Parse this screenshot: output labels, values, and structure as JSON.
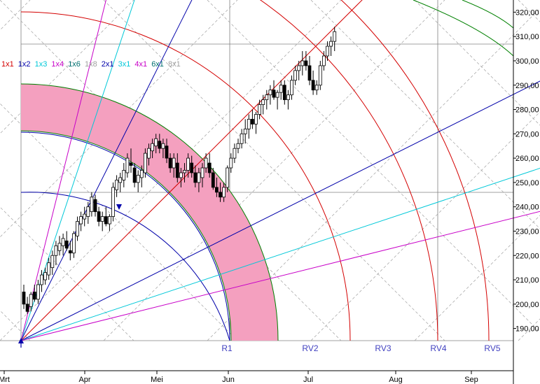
{
  "chart_data": {
    "type": "candlestick",
    "y_axis": {
      "ylim": [
        185,
        325
      ],
      "ticks": [
        320,
        310,
        300,
        290,
        280,
        270,
        260,
        250,
        240,
        230,
        220,
        210,
        200,
        190
      ],
      "tick_labels": [
        "320,00",
        "310,00",
        "300,00",
        "290,00",
        "280,00",
        "270,00",
        "260,00",
        "250,00",
        "240,00",
        "230,00",
        "220,00",
        "210,00",
        "200,00",
        "190,00"
      ]
    },
    "x_axis": {
      "month_labels": [
        "Mrt",
        "Apr",
        "Mei",
        "Jun",
        "Jul",
        "Aug",
        "Sep"
      ],
      "month_index": [
        0,
        27,
        48,
        70,
        91,
        114,
        136
      ]
    },
    "fan_legend": [
      {
        "label": "1x1",
        "color": "#d40000"
      },
      {
        "label": "1x2",
        "color": "#0000aa"
      },
      {
        "label": "1x3",
        "color": "#00c8d8"
      },
      {
        "label": "1x4",
        "color": "#c800c8"
      },
      {
        "label": "1x6",
        "color": "#007070"
      },
      {
        "label": "1x8",
        "color": "#a0a0a0"
      },
      {
        "label": "2x1",
        "color": "#0000aa"
      },
      {
        "label": "3x1",
        "color": "#00c8d8"
      },
      {
        "label": "4x1",
        "color": "#c800c8"
      },
      {
        "label": "6x1",
        "color": "#007070"
      },
      {
        "label": "8x1",
        "color": "#a0a0a0"
      }
    ],
    "radial_labels": [
      "R1",
      "RV2",
      "RV3",
      "RV4",
      "RV5"
    ],
    "ohlc": [
      [
        205,
        208,
        198,
        200
      ],
      [
        200,
        203,
        196,
        197
      ],
      [
        199,
        205,
        197,
        204
      ],
      [
        205,
        208,
        201,
        202
      ],
      [
        202,
        210,
        200,
        208
      ],
      [
        208,
        214,
        205,
        212
      ],
      [
        210,
        215,
        208,
        213
      ],
      [
        212,
        219,
        210,
        217
      ],
      [
        215,
        222,
        212,
        220
      ],
      [
        220,
        226,
        216,
        224
      ],
      [
        222,
        228,
        220,
        225
      ],
      [
        224,
        229,
        220,
        227
      ],
      [
        226,
        230,
        222,
        223
      ],
      [
        222,
        226,
        218,
        221
      ],
      [
        221,
        230,
        219,
        229
      ],
      [
        228,
        236,
        226,
        234
      ],
      [
        233,
        238,
        230,
        236
      ],
      [
        235,
        240,
        232,
        237
      ],
      [
        236,
        242,
        233,
        240
      ],
      [
        238,
        246,
        236,
        244
      ],
      [
        243,
        245,
        236,
        238
      ],
      [
        238,
        240,
        232,
        234
      ],
      [
        234,
        238,
        230,
        236
      ],
      [
        236,
        240,
        232,
        233
      ],
      [
        233,
        237,
        230,
        236
      ],
      [
        236,
        250,
        234,
        248
      ],
      [
        247,
        253,
        244,
        251
      ],
      [
        250,
        254,
        246,
        252
      ],
      [
        251,
        258,
        248,
        255
      ],
      [
        254,
        262,
        252,
        260
      ],
      [
        258,
        264,
        254,
        257
      ],
      [
        256,
        258,
        248,
        250
      ],
      [
        250,
        255,
        246,
        253
      ],
      [
        252,
        257,
        248,
        255
      ],
      [
        254,
        264,
        252,
        262
      ],
      [
        260,
        266,
        257,
        264
      ],
      [
        263,
        268,
        260,
        266
      ],
      [
        265,
        270,
        262,
        268
      ],
      [
        267,
        270,
        262,
        264
      ],
      [
        264,
        268,
        260,
        266
      ],
      [
        265,
        268,
        258,
        260
      ],
      [
        260,
        262,
        254,
        256
      ],
      [
        256,
        262,
        252,
        260
      ],
      [
        258,
        262,
        250,
        252
      ],
      [
        252,
        256,
        248,
        254
      ],
      [
        254,
        258,
        250,
        255
      ],
      [
        255,
        262,
        252,
        260
      ],
      [
        258,
        261,
        252,
        254
      ],
      [
        254,
        257,
        248,
        250
      ],
      [
        250,
        256,
        246,
        254
      ],
      [
        252,
        258,
        248,
        256
      ],
      [
        256,
        262,
        254,
        260
      ],
      [
        258,
        262,
        252,
        254
      ],
      [
        254,
        256,
        247,
        248
      ],
      [
        248,
        252,
        244,
        246
      ],
      [
        246,
        250,
        242,
        244
      ],
      [
        244,
        250,
        242,
        248
      ],
      [
        248,
        257,
        246,
        256
      ],
      [
        256,
        262,
        254,
        260
      ],
      [
        260,
        266,
        258,
        264
      ],
      [
        264,
        268,
        262,
        266
      ],
      [
        266,
        272,
        264,
        270
      ],
      [
        270,
        276,
        266,
        272
      ],
      [
        272,
        278,
        268,
        276
      ],
      [
        276,
        280,
        272,
        274
      ],
      [
        274,
        279,
        270,
        278
      ],
      [
        278,
        284,
        276,
        282
      ],
      [
        282,
        286,
        278,
        284
      ],
      [
        284,
        288,
        280,
        286
      ],
      [
        286,
        290,
        282,
        288
      ],
      [
        288,
        292,
        284,
        285
      ],
      [
        285,
        288,
        280,
        287
      ],
      [
        287,
        292,
        284,
        290
      ],
      [
        290,
        292,
        282,
        284
      ],
      [
        284,
        288,
        280,
        286
      ],
      [
        286,
        294,
        284,
        292
      ],
      [
        292,
        298,
        290,
        296
      ],
      [
        296,
        300,
        292,
        298
      ],
      [
        298,
        304,
        294,
        300
      ],
      [
        300,
        304,
        296,
        298
      ],
      [
        298,
        302,
        290,
        292
      ],
      [
        292,
        296,
        286,
        288
      ],
      [
        288,
        292,
        286,
        290
      ],
      [
        290,
        300,
        288,
        298
      ],
      [
        298,
        304,
        296,
        302
      ],
      [
        302,
        308,
        300,
        306
      ],
      [
        306,
        310,
        302,
        308
      ],
      [
        308,
        314,
        304,
        312
      ]
    ]
  }
}
